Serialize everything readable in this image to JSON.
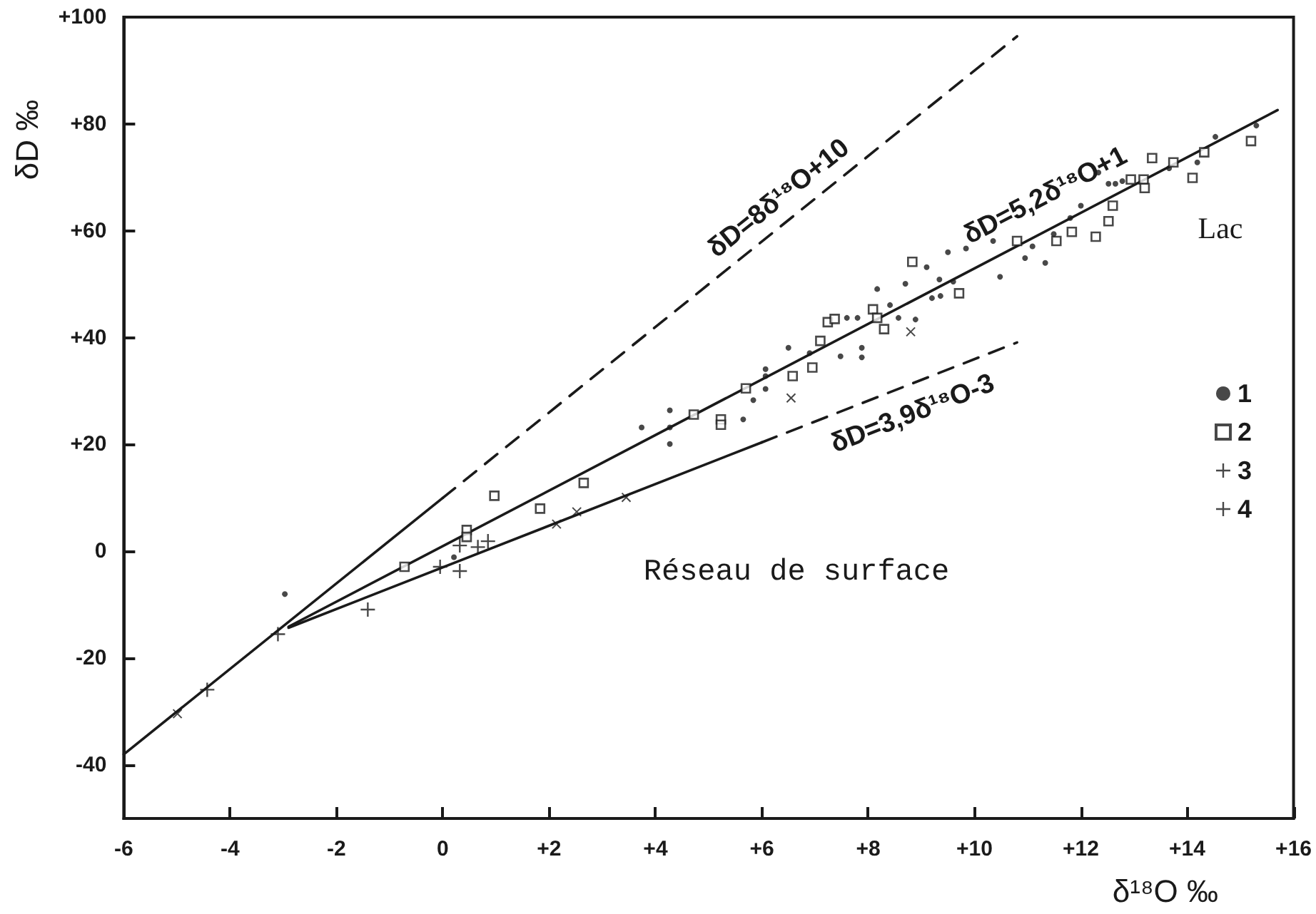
{
  "chart_data": {
    "type": "scatter",
    "xlabel": "δ¹⁸O ‰",
    "ylabel": "δD ‰",
    "xlim": [
      -6,
      16
    ],
    "ylim": [
      -50,
      100
    ],
    "xticks": [
      -6,
      -4,
      -2,
      0,
      {
        "value": 2,
        "label": "+2"
      },
      {
        "value": 4,
        "label": "+4"
      },
      {
        "value": 6,
        "label": "+6"
      },
      {
        "value": 8,
        "label": "+8"
      },
      {
        "value": 10,
        "label": "+10"
      },
      {
        "value": 12,
        "label": "+12"
      },
      {
        "value": 14,
        "label": "+14"
      },
      {
        "value": 16,
        "label": "+16"
      }
    ],
    "yticks": [
      -40,
      -20,
      0,
      {
        "value": 20,
        "label": "+20"
      },
      {
        "value": 40,
        "label": "+40"
      },
      {
        "value": 60,
        "label": "+60"
      },
      {
        "value": 80,
        "label": "+80"
      },
      {
        "value": 100,
        "label": "+100"
      }
    ],
    "grid": false,
    "legend": "right",
    "annotations": [
      "Lac",
      "Réseau de surface"
    ],
    "series": [
      {
        "type": "line",
        "color": "#1a1a1a",
        "marker": "none",
        "line_style": "solid",
        "x": [
          -6,
          0
        ],
        "values": [
          -38,
          10
        ]
      },
      {
        "type": "line",
        "name": "δD=8δ¹⁸O+10",
        "color": "#1a1a1a",
        "marker": "none",
        "line_style": "dashed",
        "x": [
          0,
          10.8
        ],
        "values": [
          10,
          96.4
        ]
      },
      {
        "type": "line",
        "name": "δD=5,2δ¹⁸O+1",
        "color": "#1a1a1a",
        "marker": "none",
        "line_style": "solid",
        "x": [
          -2.9,
          15.7
        ],
        "values": [
          -14.1,
          82.6
        ]
      },
      {
        "type": "line",
        "color": "#1a1a1a",
        "marker": "none",
        "line_style": "solid",
        "x": [
          -2.9,
          6
        ],
        "values": [
          -14.3,
          20.4
        ]
      },
      {
        "type": "line",
        "name": "δD=3,9δ¹⁸O-3",
        "color": "#1a1a1a",
        "marker": "none",
        "line_style": "dashed",
        "x": [
          6,
          10.8
        ],
        "values": [
          20.4,
          39.1
        ]
      },
      {
        "name": "1",
        "color": "#1a1a1a",
        "marker": "circle",
        "x": [
          -2.97,
          0.21,
          4.27,
          3.74,
          4.27,
          4.27,
          5.65,
          5.84,
          6.07,
          6.07,
          6.07,
          6.5,
          6.9,
          7.6,
          7.8,
          7.48,
          7.88,
          7.88,
          8.17,
          8.41,
          8.57,
          8.89,
          8.7,
          9.1,
          9.34,
          9.36,
          9.2,
          9.6,
          9.5,
          9.84,
          10.35,
          10.48,
          10.95,
          11.09,
          11.33,
          11.49,
          11.8,
          12.0,
          12.33,
          12.52,
          12.65,
          12.78,
          13.66,
          14.19,
          14.53,
          15.3
        ],
        "values": [
          -8,
          -1.1,
          20.1,
          23.2,
          26.4,
          23.2,
          24.7,
          28.3,
          34.1,
          32.8,
          30.4,
          38.1,
          37.1,
          43.7,
          43.7,
          36.5,
          38.1,
          36.3,
          49.1,
          46.1,
          43.7,
          43.4,
          50.1,
          53.2,
          50.9,
          47.8,
          47.4,
          50.5,
          56,
          56.7,
          58.1,
          51.4,
          54.9,
          57.1,
          54,
          59.4,
          62.4,
          64.7,
          70.9,
          68.8,
          68.8,
          69.3,
          71.7,
          72.8,
          77.6,
          79.7
        ]
      },
      {
        "name": "2",
        "color": "#1a1a1a",
        "marker": "square",
        "x": [
          -0.72,
          0.45,
          0.45,
          0.97,
          1.83,
          2.65,
          4.72,
          5.23,
          5.23,
          5.7,
          6.58,
          6.95,
          7.1,
          7.24,
          7.37,
          8.09,
          8.17,
          8.3,
          8.83,
          9.71,
          10.8,
          11.54,
          11.83,
          12.28,
          12.52,
          12.6,
          12.94,
          13.18,
          13.2,
          13.34,
          13.74,
          14.1,
          14.32,
          15.2
        ],
        "values": [
          -2.9,
          4,
          2.7,
          10.4,
          8,
          12.8,
          25.6,
          24.7,
          23.7,
          30.5,
          32.8,
          34.4,
          39.4,
          42.9,
          43.5,
          45.3,
          43.7,
          41.6,
          54.2,
          48.3,
          58.1,
          58.1,
          59.8,
          58.9,
          61.8,
          64.7,
          69.6,
          69.6,
          68,
          73.6,
          72.8,
          69.9,
          74.7,
          76.8
        ]
      },
      {
        "name": "3",
        "color": "#1a1a1a",
        "marker": "cross",
        "x": [
          -3.1,
          -4.43,
          -1.41,
          -0.05,
          0.32,
          0.32,
          0.66,
          0.85
        ],
        "values": [
          -15.5,
          -25.9,
          -10.9,
          -2.9,
          -3.7,
          1.1,
          0.8,
          1.9
        ]
      },
      {
        "name": "4",
        "color": "#1a1a1a",
        "marker": "cross",
        "x": [
          -4.99,
          2.14,
          2.52,
          3.45,
          6.55,
          8.8
        ],
        "values": [
          -30.4,
          5.1,
          7.4,
          10.1,
          28.7,
          41.1
        ]
      }
    ]
  }
}
